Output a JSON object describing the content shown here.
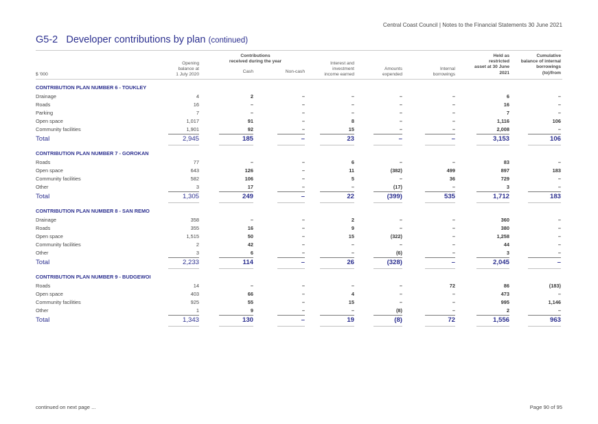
{
  "header": {
    "running_title": "Central Coast Council | Notes to the Financial Statements 30 June 2021"
  },
  "title": {
    "number": "G5-2",
    "text": "Developer contributions by plan",
    "suffix": "(continued)"
  },
  "columns": {
    "unit": "$ '000",
    "opening": [
      "Opening",
      "balance at",
      "1 July 2020"
    ],
    "contributions_group": [
      "Contributions",
      "received during the year"
    ],
    "cash": "Cash",
    "noncash": "Non-cash",
    "interest": [
      "Interest and",
      "investment",
      "income earned"
    ],
    "expended": [
      "Amounts",
      "expended"
    ],
    "internal": [
      "Internal",
      "borrowings"
    ],
    "held": [
      "Held as",
      "restricted",
      "asset at 30 June",
      "2021"
    ],
    "cumulative": [
      "Cumulative",
      "balance of internal",
      "borrowings",
      "(to)/from"
    ]
  },
  "sections": [
    {
      "title": "CONTRIBUTION PLAN NUMBER 6 - TOUKLEY",
      "rows": [
        {
          "label": "Drainage",
          "values": [
            "4",
            "2",
            "–",
            "–",
            "–",
            "–",
            "6",
            "–"
          ]
        },
        {
          "label": "Roads",
          "values": [
            "16",
            "–",
            "–",
            "–",
            "–",
            "–",
            "16",
            "–"
          ]
        },
        {
          "label": "Parking",
          "values": [
            "7",
            "–",
            "–",
            "–",
            "–",
            "–",
            "7",
            "–"
          ]
        },
        {
          "label": "Open space",
          "values": [
            "1,017",
            "91",
            "–",
            "8",
            "–",
            "–",
            "1,116",
            "106"
          ]
        },
        {
          "label": "Community facilities",
          "values": [
            "1,901",
            "92",
            "–",
            "15",
            "–",
            "–",
            "2,008",
            "–"
          ]
        }
      ],
      "total": {
        "label": "Total",
        "values": [
          "2,945",
          "185",
          "–",
          "23",
          "–",
          "–",
          "3,153",
          "106"
        ]
      }
    },
    {
      "title": "CONTRIBUTION PLAN NUMBER 7 - GOROKAN",
      "rows": [
        {
          "label": "Roads",
          "values": [
            "77",
            "–",
            "–",
            "6",
            "–",
            "–",
            "83",
            "–"
          ]
        },
        {
          "label": "Open space",
          "values": [
            "643",
            "126",
            "–",
            "11",
            "(382)",
            "499",
            "897",
            "183"
          ]
        },
        {
          "label": "Community facilities",
          "values": [
            "582",
            "106",
            "–",
            "5",
            "–",
            "36",
            "729",
            "–"
          ]
        },
        {
          "label": "Other",
          "values": [
            "3",
            "17",
            "–",
            "–",
            "(17)",
            "–",
            "3",
            "–"
          ]
        }
      ],
      "total": {
        "label": "Total",
        "values": [
          "1,305",
          "249",
          "–",
          "22",
          "(399)",
          "535",
          "1,712",
          "183"
        ]
      }
    },
    {
      "title": "CONTRIBUTION PLAN NUMBER 8 - SAN REMO",
      "rows": [
        {
          "label": "Drainage",
          "values": [
            "358",
            "–",
            "–",
            "2",
            "–",
            "–",
            "360",
            "–"
          ]
        },
        {
          "label": "Roads",
          "values": [
            "355",
            "16",
            "–",
            "9",
            "–",
            "–",
            "380",
            "–"
          ]
        },
        {
          "label": "Open space",
          "values": [
            "1,515",
            "50",
            "–",
            "15",
            "(322)",
            "–",
            "1,258",
            "–"
          ]
        },
        {
          "label": "Community facilities",
          "values": [
            "2",
            "42",
            "–",
            "–",
            "–",
            "–",
            "44",
            "–"
          ]
        },
        {
          "label": "Other",
          "values": [
            "3",
            "6",
            "–",
            "–",
            "(6)",
            "–",
            "3",
            "–"
          ]
        }
      ],
      "total": {
        "label": "Total",
        "values": [
          "2,233",
          "114",
          "–",
          "26",
          "(328)",
          "–",
          "2,045",
          "–"
        ]
      }
    },
    {
      "title": "CONTRIBUTION PLAN NUMBER 9 - BUDGEWOI",
      "rows": [
        {
          "label": "Roads",
          "values": [
            "14",
            "–",
            "–",
            "–",
            "–",
            "72",
            "86",
            "(183)"
          ]
        },
        {
          "label": "Open space",
          "values": [
            "403",
            "66",
            "–",
            "4",
            "–",
            "–",
            "473",
            "–"
          ]
        },
        {
          "label": "Community facilities",
          "values": [
            "925",
            "55",
            "–",
            "15",
            "–",
            "–",
            "995",
            "1,146"
          ]
        },
        {
          "label": "Other",
          "values": [
            "1",
            "9",
            "–",
            "–",
            "(8)",
            "–",
            "2",
            "–"
          ]
        }
      ],
      "total": {
        "label": "Total",
        "values": [
          "1,343",
          "130",
          "–",
          "19",
          "(8)",
          "72",
          "1,556",
          "963"
        ]
      }
    }
  ],
  "footer": {
    "continued": "continued on next page ...",
    "page": "Page 90 of 95"
  },
  "colors": {
    "accent": "#2b2f8f",
    "text": "#333333"
  }
}
